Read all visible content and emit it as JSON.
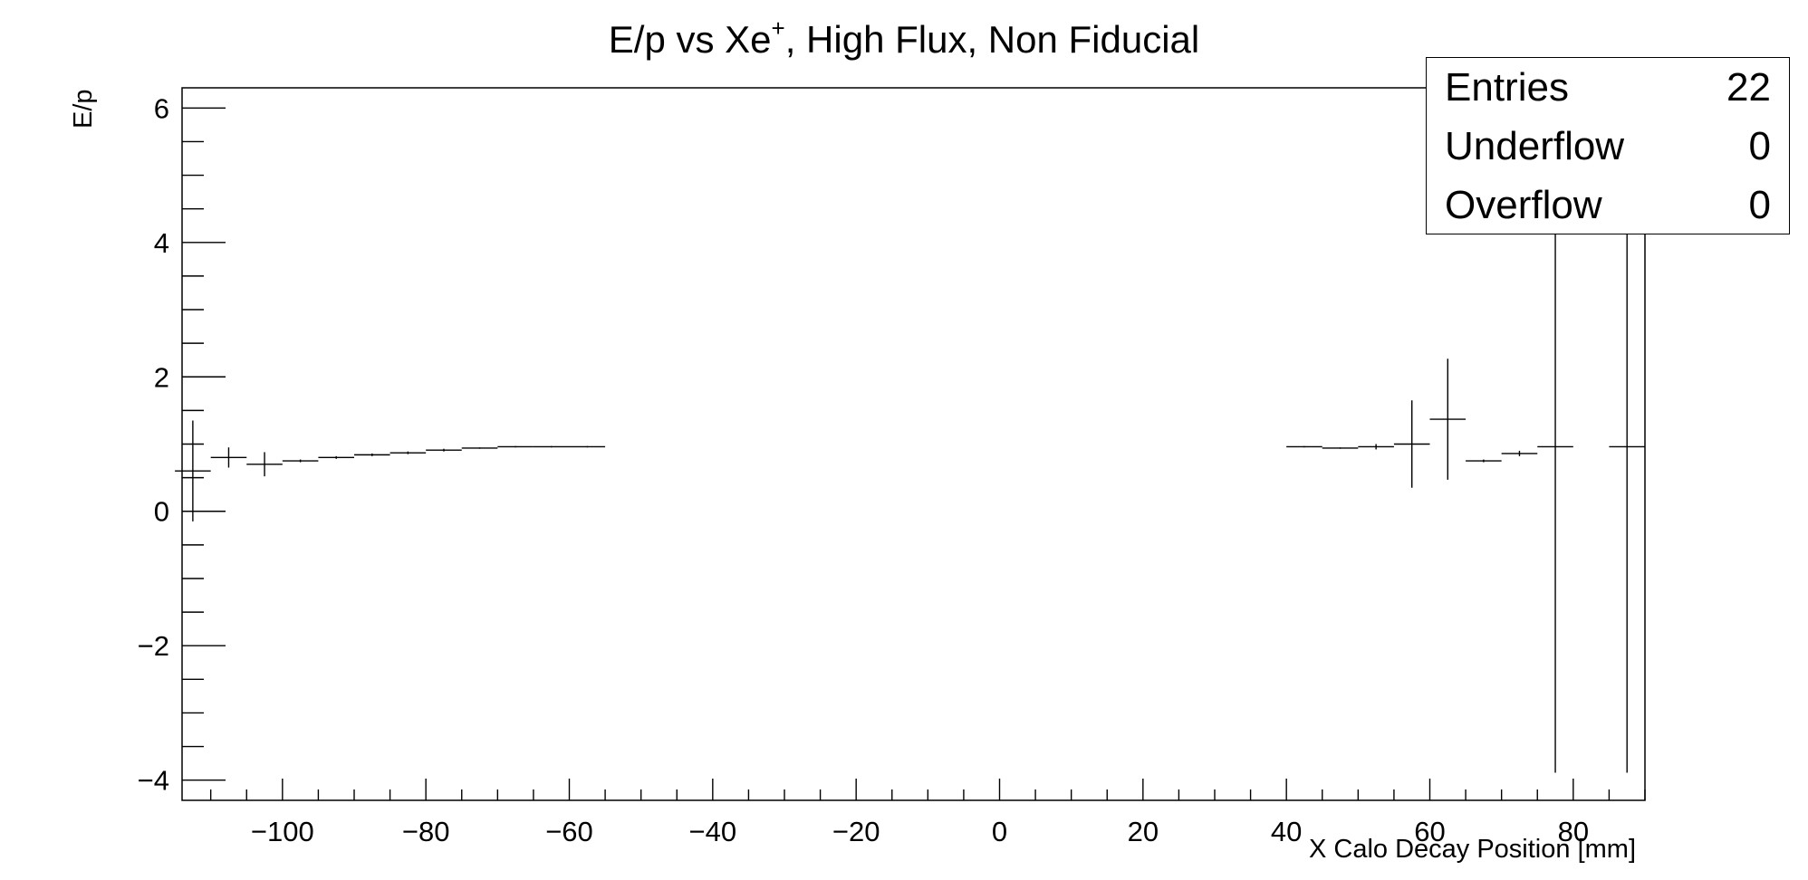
{
  "chart_data": {
    "type": "scatter",
    "title": "E/p vs Xe",
    "title_sup": "+",
    "title_rest": ", High Flux, Non Fiducial",
    "xlabel": "X Calo Decay Position [mm]",
    "ylabel": "E/p",
    "xlim": [
      -114,
      90
    ],
    "ylim": [
      -4.3,
      6.3
    ],
    "x_ticks": [
      -100,
      -80,
      -60,
      -40,
      -20,
      0,
      20,
      40,
      60,
      80
    ],
    "x_tick_labels": [
      "−100",
      "−80",
      "−60",
      "−40",
      "−20",
      "0",
      "20",
      "40",
      "60",
      "80"
    ],
    "y_ticks": [
      -4,
      -2,
      0,
      2,
      4,
      6
    ],
    "y_tick_labels": [
      "−4",
      "−2",
      "0",
      "2",
      "4",
      "6"
    ],
    "bin_width": 5,
    "series": [
      {
        "points": [
          {
            "x": -112.5,
            "y": 0.6,
            "err": 0.75
          },
          {
            "x": -107.5,
            "y": 0.8,
            "err": 0.15
          },
          {
            "x": -102.5,
            "y": 0.7,
            "err": 0.18
          },
          {
            "x": -97.5,
            "y": 0.75,
            "err": 0.02
          },
          {
            "x": -92.5,
            "y": 0.8,
            "err": 0.02
          },
          {
            "x": -87.5,
            "y": 0.84,
            "err": 0.02
          },
          {
            "x": -82.5,
            "y": 0.87,
            "err": 0.02
          },
          {
            "x": -77.5,
            "y": 0.91,
            "err": 0.02
          },
          {
            "x": -72.5,
            "y": 0.94,
            "err": 0.01
          },
          {
            "x": -67.5,
            "y": 0.96,
            "err": 0.01
          },
          {
            "x": -62.5,
            "y": 0.96,
            "err": 0.01
          },
          {
            "x": -57.5,
            "y": 0.96,
            "err": 0.01
          },
          {
            "x": 42.5,
            "y": 0.96,
            "err": 0.01
          },
          {
            "x": 47.5,
            "y": 0.94,
            "err": 0.01
          },
          {
            "x": 52.5,
            "y": 0.96,
            "err": 0.04
          },
          {
            "x": 57.5,
            "y": 1.0,
            "err": 0.65
          },
          {
            "x": 62.5,
            "y": 1.37,
            "err": 0.9
          },
          {
            "x": 67.5,
            "y": 0.75,
            "err": 0.02
          },
          {
            "x": 72.5,
            "y": 0.86,
            "err": 0.04
          },
          {
            "x": 77.5,
            "y": 0.96,
            "err": 4.85
          },
          {
            "x": 87.5,
            "y": 0.96,
            "err": 4.85
          }
        ]
      }
    ],
    "legend": "top-right",
    "grid": false
  },
  "stats": {
    "rows": [
      {
        "label": "Entries",
        "value": "22"
      },
      {
        "label": "Underflow",
        "value": "0"
      },
      {
        "label": "Overflow",
        "value": "0"
      }
    ]
  }
}
